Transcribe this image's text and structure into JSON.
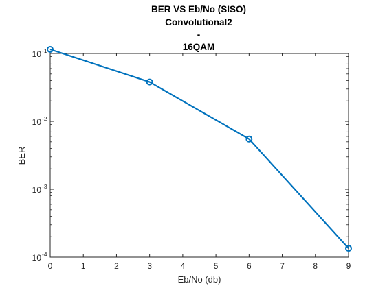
{
  "chart_data": {
    "type": "line",
    "title": [
      "BER VS Eb/No (SISO)",
      "Convolutional2",
      "-",
      "16QAM"
    ],
    "xlabel": "Eb/No (db)",
    "ylabel": "BER",
    "x": [
      0,
      3,
      6,
      9
    ],
    "series": [
      {
        "values": [
          0.115,
          0.038,
          0.0055,
          0.000135
        ],
        "color": "#0072BD",
        "marker": "circle"
      }
    ],
    "xlim": [
      0,
      9
    ],
    "ylim": [
      0.0001,
      0.1
    ],
    "yscale": "log",
    "xticks": [
      "0",
      "1",
      "2",
      "3",
      "4",
      "5",
      "6",
      "7",
      "8",
      "9"
    ],
    "yticks": [
      {
        "base": "10",
        "exp": "-4"
      },
      {
        "base": "10",
        "exp": "-3"
      },
      {
        "base": "10",
        "exp": "-2"
      },
      {
        "base": "10",
        "exp": "-1"
      }
    ],
    "grid": false,
    "legend": "none"
  }
}
